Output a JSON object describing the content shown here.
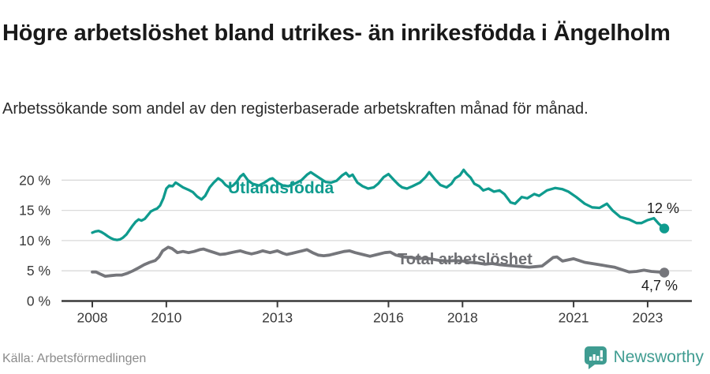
{
  "header": {
    "title": "Högre arbetslöshet bland utrikes- än inrikesfödda i Ängelholm",
    "subtitle": "Arbetssökande som andel av den registerbaserade arbetskraften månad för månad."
  },
  "footer": {
    "source": "Källa: Arbetsförmedlingen",
    "brand": "Newsworthy",
    "brand_color": "#3f9c91",
    "logo_icon": "bar-chart-speech-bubble"
  },
  "chart_data": {
    "type": "line",
    "title": "Högre arbetslöshet bland utrikes- än inrikesfödda i Ängelholm",
    "grid": "horizontal",
    "legend_position": "inline-labels",
    "x_axis": {
      "ticks": [
        2008,
        2010,
        2013,
        2016,
        2018,
        2021,
        2023
      ],
      "range": [
        2007.7,
        2023.8
      ]
    },
    "y_axis": {
      "unit": "%",
      "range": [
        0,
        23
      ],
      "ticks": [
        {
          "value": 0,
          "label": "0 %"
        },
        {
          "value": 5,
          "label": "5 %"
        },
        {
          "value": 10,
          "label": "10 %"
        },
        {
          "value": 15,
          "label": "15 %"
        },
        {
          "value": 20,
          "label": "20 %"
        }
      ]
    },
    "series": [
      {
        "name": "Utlandsfödda",
        "color": "#0f9b8e",
        "end_label": "12 %",
        "end_value": 12.0,
        "points": [
          [
            2008.0,
            11.3
          ],
          [
            2008.08,
            11.5
          ],
          [
            2008.17,
            11.6
          ],
          [
            2008.25,
            11.4
          ],
          [
            2008.33,
            11.1
          ],
          [
            2008.42,
            10.7
          ],
          [
            2008.5,
            10.4
          ],
          [
            2008.58,
            10.2
          ],
          [
            2008.67,
            10.1
          ],
          [
            2008.75,
            10.2
          ],
          [
            2008.83,
            10.5
          ],
          [
            2008.92,
            11.0
          ],
          [
            2009.0,
            11.7
          ],
          [
            2009.08,
            12.4
          ],
          [
            2009.17,
            13.1
          ],
          [
            2009.25,
            13.5
          ],
          [
            2009.33,
            13.3
          ],
          [
            2009.42,
            13.6
          ],
          [
            2009.5,
            14.2
          ],
          [
            2009.58,
            14.8
          ],
          [
            2009.67,
            15.1
          ],
          [
            2009.75,
            15.3
          ],
          [
            2009.83,
            15.8
          ],
          [
            2009.92,
            17.0
          ],
          [
            2010.0,
            18.6
          ],
          [
            2010.08,
            19.1
          ],
          [
            2010.17,
            19.0
          ],
          [
            2010.25,
            19.6
          ],
          [
            2010.33,
            19.3
          ],
          [
            2010.45,
            18.8
          ],
          [
            2010.6,
            18.4
          ],
          [
            2010.72,
            18.0
          ],
          [
            2010.83,
            17.3
          ],
          [
            2010.95,
            16.8
          ],
          [
            2011.05,
            17.4
          ],
          [
            2011.17,
            18.8
          ],
          [
            2011.28,
            19.6
          ],
          [
            2011.4,
            20.3
          ],
          [
            2011.5,
            19.9
          ],
          [
            2011.6,
            19.2
          ],
          [
            2011.7,
            18.8
          ],
          [
            2011.8,
            19.1
          ],
          [
            2011.9,
            19.7
          ],
          [
            2012.0,
            20.6
          ],
          [
            2012.08,
            21.0
          ],
          [
            2012.2,
            20.0
          ],
          [
            2012.33,
            19.4
          ],
          [
            2012.5,
            19.1
          ],
          [
            2012.65,
            19.6
          ],
          [
            2012.8,
            20.2
          ],
          [
            2012.87,
            20.3
          ],
          [
            2013.0,
            19.6
          ],
          [
            2013.15,
            19.1
          ],
          [
            2013.3,
            19.0
          ],
          [
            2013.5,
            19.5
          ],
          [
            2013.65,
            20.0
          ],
          [
            2013.8,
            20.9
          ],
          [
            2013.9,
            21.3
          ],
          [
            2014.0,
            20.9
          ],
          [
            2014.15,
            20.3
          ],
          [
            2014.3,
            19.7
          ],
          [
            2014.45,
            19.6
          ],
          [
            2014.6,
            19.9
          ],
          [
            2014.75,
            20.8
          ],
          [
            2014.85,
            21.2
          ],
          [
            2014.94,
            20.6
          ],
          [
            2015.03,
            20.9
          ],
          [
            2015.16,
            19.6
          ],
          [
            2015.3,
            19.0
          ],
          [
            2015.45,
            18.6
          ],
          [
            2015.6,
            18.8
          ],
          [
            2015.72,
            19.4
          ],
          [
            2015.87,
            20.5
          ],
          [
            2016.0,
            21.0
          ],
          [
            2016.15,
            20.0
          ],
          [
            2016.28,
            19.2
          ],
          [
            2016.37,
            18.8
          ],
          [
            2016.5,
            18.6
          ],
          [
            2016.65,
            19.0
          ],
          [
            2016.85,
            19.6
          ],
          [
            2017.0,
            20.5
          ],
          [
            2017.1,
            21.3
          ],
          [
            2017.26,
            20.1
          ],
          [
            2017.4,
            19.2
          ],
          [
            2017.57,
            18.8
          ],
          [
            2017.7,
            19.4
          ],
          [
            2017.8,
            20.3
          ],
          [
            2017.93,
            20.8
          ],
          [
            2018.03,
            21.7
          ],
          [
            2018.12,
            21.0
          ],
          [
            2018.22,
            20.4
          ],
          [
            2018.32,
            19.4
          ],
          [
            2018.45,
            19.0
          ],
          [
            2018.56,
            18.3
          ],
          [
            2018.7,
            18.6
          ],
          [
            2018.85,
            18.1
          ],
          [
            2019.0,
            18.3
          ],
          [
            2019.13,
            17.7
          ],
          [
            2019.3,
            16.3
          ],
          [
            2019.42,
            16.1
          ],
          [
            2019.6,
            17.2
          ],
          [
            2019.75,
            17.0
          ],
          [
            2019.94,
            17.7
          ],
          [
            2020.07,
            17.4
          ],
          [
            2020.28,
            18.3
          ],
          [
            2020.5,
            18.7
          ],
          [
            2020.7,
            18.5
          ],
          [
            2020.86,
            18.1
          ],
          [
            2021.07,
            17.2
          ],
          [
            2021.3,
            16.1
          ],
          [
            2021.5,
            15.5
          ],
          [
            2021.7,
            15.4
          ],
          [
            2021.9,
            16.1
          ],
          [
            2022.05,
            15.0
          ],
          [
            2022.26,
            13.9
          ],
          [
            2022.5,
            13.5
          ],
          [
            2022.7,
            12.9
          ],
          [
            2022.83,
            12.9
          ],
          [
            2023.0,
            13.4
          ],
          [
            2023.17,
            13.7
          ],
          [
            2023.3,
            12.8
          ],
          [
            2023.45,
            12.0
          ]
        ]
      },
      {
        "name": "Total arbetslöshet",
        "color": "#75767b",
        "end_label": "4,7 %",
        "end_value": 4.7,
        "points": [
          [
            2008.0,
            4.8
          ],
          [
            2008.1,
            4.8
          ],
          [
            2008.2,
            4.5
          ],
          [
            2008.35,
            4.1
          ],
          [
            2008.5,
            4.2
          ],
          [
            2008.65,
            4.3
          ],
          [
            2008.8,
            4.3
          ],
          [
            2008.95,
            4.6
          ],
          [
            2009.1,
            5.0
          ],
          [
            2009.25,
            5.5
          ],
          [
            2009.4,
            6.0
          ],
          [
            2009.55,
            6.4
          ],
          [
            2009.7,
            6.7
          ],
          [
            2009.8,
            7.3
          ],
          [
            2009.9,
            8.3
          ],
          [
            2010.05,
            8.9
          ],
          [
            2010.15,
            8.7
          ],
          [
            2010.3,
            8.0
          ],
          [
            2010.45,
            8.2
          ],
          [
            2010.6,
            8.0
          ],
          [
            2010.75,
            8.2
          ],
          [
            2010.9,
            8.5
          ],
          [
            2011.0,
            8.6
          ],
          [
            2011.15,
            8.3
          ],
          [
            2011.3,
            8.0
          ],
          [
            2011.45,
            7.7
          ],
          [
            2011.6,
            7.8
          ],
          [
            2011.75,
            8.0
          ],
          [
            2011.9,
            8.2
          ],
          [
            2012.0,
            8.3
          ],
          [
            2012.15,
            8.0
          ],
          [
            2012.3,
            7.8
          ],
          [
            2012.45,
            8.0
          ],
          [
            2012.6,
            8.3
          ],
          [
            2012.8,
            8.0
          ],
          [
            2013.0,
            8.3
          ],
          [
            2013.15,
            7.9
          ],
          [
            2013.25,
            7.7
          ],
          [
            2013.4,
            7.9
          ],
          [
            2013.6,
            8.2
          ],
          [
            2013.8,
            8.5
          ],
          [
            2013.95,
            8.0
          ],
          [
            2014.1,
            7.6
          ],
          [
            2014.25,
            7.5
          ],
          [
            2014.4,
            7.6
          ],
          [
            2014.6,
            7.9
          ],
          [
            2014.8,
            8.2
          ],
          [
            2014.95,
            8.3
          ],
          [
            2015.1,
            8.0
          ],
          [
            2015.3,
            7.7
          ],
          [
            2015.5,
            7.4
          ],
          [
            2015.7,
            7.7
          ],
          [
            2015.9,
            8.0
          ],
          [
            2016.05,
            8.1
          ],
          [
            2016.2,
            7.6
          ],
          [
            2016.4,
            7.3
          ],
          [
            2016.6,
            7.2
          ],
          [
            2016.8,
            7.0
          ],
          [
            2017.0,
            7.1
          ],
          [
            2017.2,
            6.9
          ],
          [
            2017.4,
            6.7
          ],
          [
            2017.6,
            6.6
          ],
          [
            2017.8,
            6.7
          ],
          [
            2018.0,
            6.6
          ],
          [
            2018.2,
            6.4
          ],
          [
            2018.4,
            6.3
          ],
          [
            2018.6,
            6.1
          ],
          [
            2018.8,
            6.2
          ],
          [
            2019.0,
            6.0
          ],
          [
            2019.2,
            5.9
          ],
          [
            2019.4,
            5.8
          ],
          [
            2019.6,
            5.7
          ],
          [
            2019.8,
            5.6
          ],
          [
            2020.0,
            5.7
          ],
          [
            2020.15,
            5.8
          ],
          [
            2020.3,
            6.5
          ],
          [
            2020.45,
            7.2
          ],
          [
            2020.55,
            7.3
          ],
          [
            2020.7,
            6.6
          ],
          [
            2020.85,
            6.8
          ],
          [
            2021.0,
            7.0
          ],
          [
            2021.15,
            6.7
          ],
          [
            2021.3,
            6.4
          ],
          [
            2021.5,
            6.2
          ],
          [
            2021.7,
            6.0
          ],
          [
            2021.9,
            5.8
          ],
          [
            2022.1,
            5.6
          ],
          [
            2022.3,
            5.2
          ],
          [
            2022.5,
            4.8
          ],
          [
            2022.7,
            4.9
          ],
          [
            2022.9,
            5.1
          ],
          [
            2023.1,
            4.9
          ],
          [
            2023.3,
            4.8
          ],
          [
            2023.45,
            4.7
          ]
        ]
      }
    ]
  }
}
